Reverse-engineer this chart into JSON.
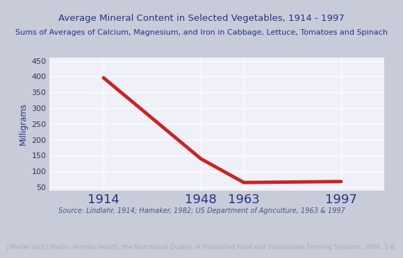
{
  "title": "Average Mineral Content in Selected Vegetables, 1914 - 1997",
  "subtitle": "Sums of Averages of Calcium, Magnesium, and Iron in Cabbage, Lettuce, Tomatoes and Spinach",
  "source_text": "Source: Lindlahr, 1914; Hamaker, 1982; US Department of Agriculture, 1963 & 1997",
  "footer_text": "J Marler and J Wallin. Human Health, the Nutritional Quality of Harvested Food and Sustainable Farming Systems, 2006, 1-8.",
  "x_values": [
    1914,
    1948,
    1963,
    1997
  ],
  "y_values": [
    396,
    140,
    65,
    68
  ],
  "x_ticks": [
    1914,
    1948,
    1963,
    1997
  ],
  "ylim": [
    40,
    460
  ],
  "yticks": [
    50,
    100,
    150,
    200,
    250,
    300,
    350,
    400,
    450
  ],
  "ylabel": "Milligrams",
  "line_color": "#cc2222",
  "line_width": 3.5,
  "bg_chart": "#f0f0f8",
  "bg_outer": "#c8ccd8",
  "bg_border": "#3355aa",
  "bg_footer": "#111111",
  "title_color": "#223388",
  "subtitle_color": "#223388",
  "source_color": "#445588",
  "footer_color": "#aaaaaa",
  "grid_color": "#ffffff",
  "ylabel_color": "#223388",
  "xtick_color": "#223388",
  "ytick_color": "#333355",
  "title_fontsize": 9.5,
  "subtitle_fontsize": 8.0,
  "source_fontsize": 7.0,
  "footer_fontsize": 6.5,
  "ylabel_fontsize": 8.5,
  "xtick_fontsize": 13,
  "ytick_fontsize": 8
}
